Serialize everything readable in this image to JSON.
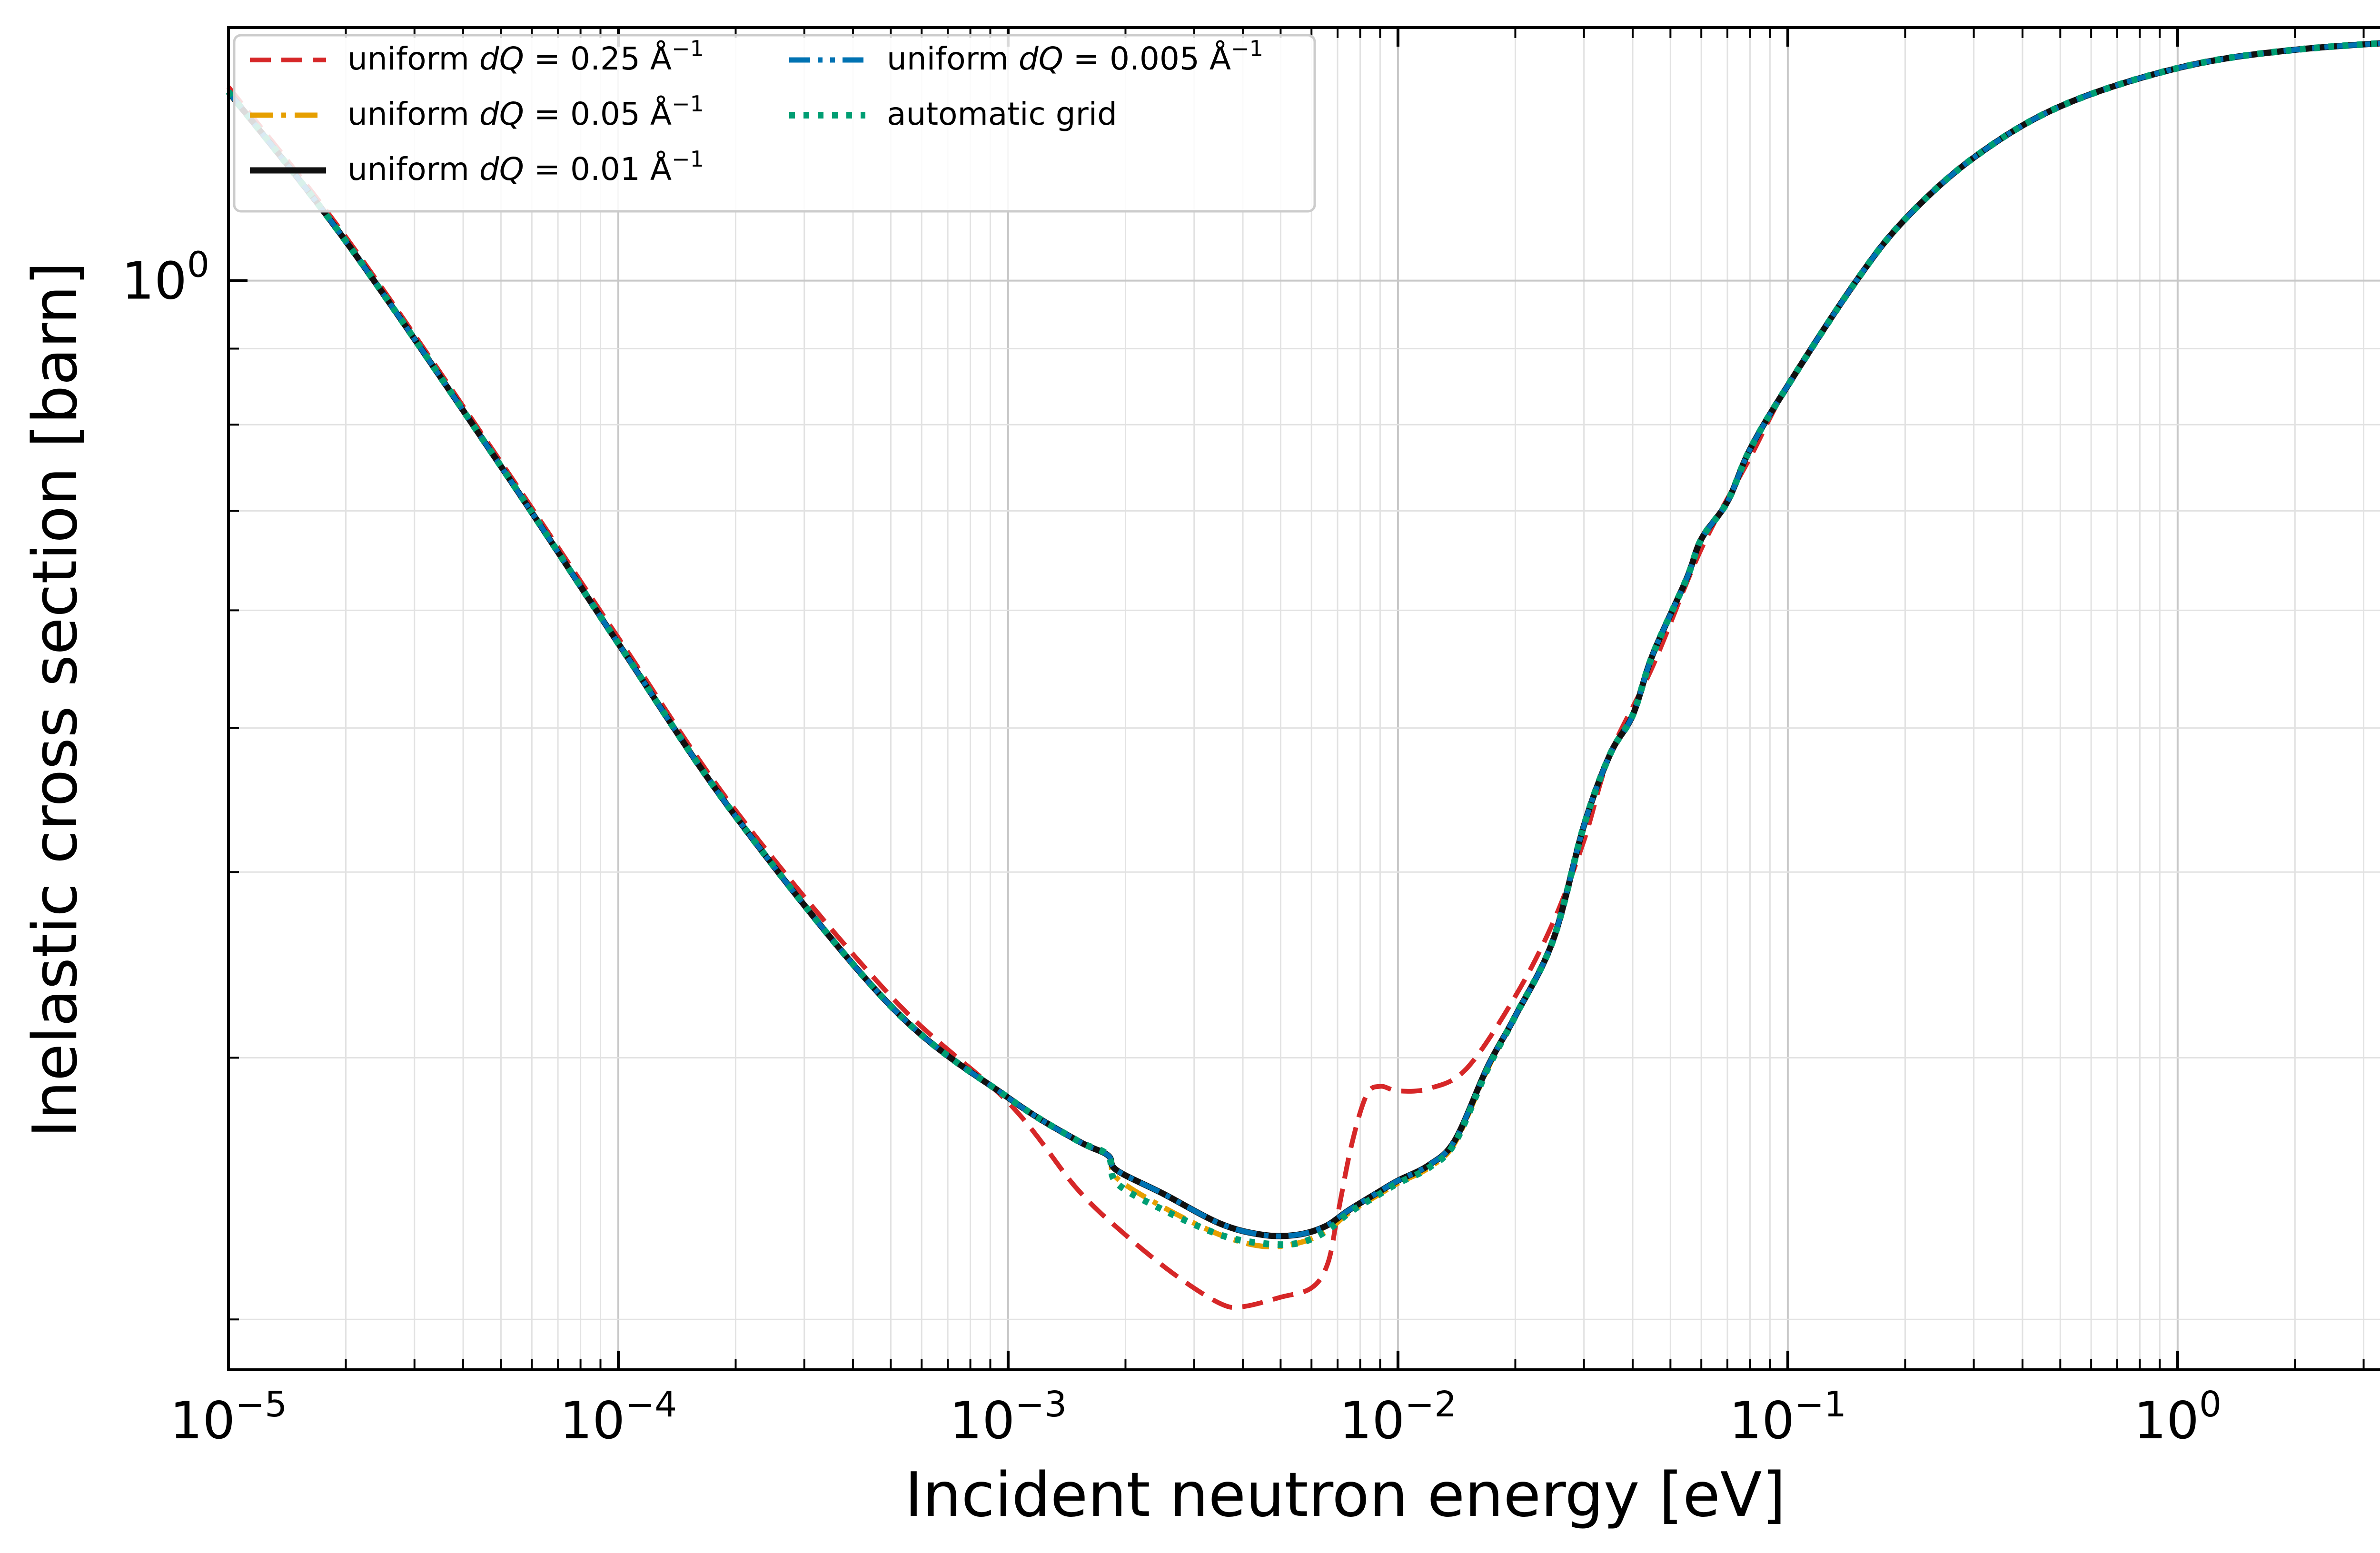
{
  "chart_data": {
    "type": "line",
    "xlabel": "Incident neutron energy [eV]",
    "ylabel": "Inelastic cross section [barn]",
    "x_scale": "log",
    "y_scale": "log",
    "xlim": [
      1e-05,
      5.3
    ],
    "ylim": [
      0.185,
      1.48
    ],
    "grid": true,
    "legend_position": "top-left",
    "x_ticks": [
      {
        "base": "10",
        "exp": "−5",
        "value": 1e-05
      },
      {
        "base": "10",
        "exp": "−4",
        "value": 0.0001
      },
      {
        "base": "10",
        "exp": "−3",
        "value": 0.001
      },
      {
        "base": "10",
        "exp": "−2",
        "value": 0.01
      },
      {
        "base": "10",
        "exp": "−1",
        "value": 0.1
      },
      {
        "base": "10",
        "exp": "0",
        "value": 1
      }
    ],
    "y_ticks": [
      {
        "base": "10",
        "exp": "0",
        "value": 1
      }
    ],
    "series": [
      {
        "name": "uniform dQ = 0.25 Å−1",
        "legend": {
          "pre": "uniform ",
          "var": "dQ",
          "eq": " = 0.25 Å",
          "sup": "−1"
        },
        "color": "#d62728",
        "style": "dashed",
        "width": 10,
        "points": [
          [
            1e-05,
            1.35
          ],
          [
            2e-05,
            1.07
          ],
          [
            5e-05,
            0.755
          ],
          [
            0.0001,
            0.575
          ],
          [
            0.0002,
            0.44
          ],
          [
            0.0005,
            0.33
          ],
          [
            0.001,
            0.28
          ],
          [
            0.0015,
            0.245
          ],
          [
            0.002,
            0.228
          ],
          [
            0.0027,
            0.214
          ],
          [
            0.0035,
            0.205
          ],
          [
            0.004,
            0.204
          ],
          [
            0.005,
            0.207
          ],
          [
            0.006,
            0.21
          ],
          [
            0.0066,
            0.218
          ],
          [
            0.007,
            0.235
          ],
          [
            0.0076,
            0.262
          ],
          [
            0.0083,
            0.283
          ],
          [
            0.009,
            0.287
          ],
          [
            0.01,
            0.285
          ],
          [
            0.012,
            0.286
          ],
          [
            0.015,
            0.295
          ],
          [
            0.02,
            0.33
          ],
          [
            0.025,
            0.37
          ],
          [
            0.03,
            0.42
          ],
          [
            0.035,
            0.48
          ],
          [
            0.045,
            0.55
          ],
          [
            0.06,
            0.66
          ],
          [
            0.08,
            0.76
          ],
          [
            0.1,
            0.85
          ],
          [
            0.15,
            1.0
          ],
          [
            0.2,
            1.1
          ],
          [
            0.3,
            1.21
          ],
          [
            0.5,
            1.31
          ],
          [
            1,
            1.39
          ],
          [
            2,
            1.43
          ],
          [
            5.3,
            1.455
          ]
        ]
      },
      {
        "name": "uniform dQ = 0.05 Å−1",
        "legend": {
          "pre": "uniform ",
          "var": "dQ",
          "eq": " = 0.05 Å",
          "sup": "−1"
        },
        "color": "#e69f00",
        "style": "dashdot",
        "width": 11,
        "points": [
          [
            1e-05,
            1.34
          ],
          [
            2e-05,
            1.063
          ],
          [
            5e-05,
            0.75
          ],
          [
            0.0001,
            0.57
          ],
          [
            0.0002,
            0.436
          ],
          [
            0.0005,
            0.325
          ],
          [
            0.001,
            0.282
          ],
          [
            0.0015,
            0.264
          ],
          [
            0.0018,
            0.258
          ],
          [
            0.0019,
            0.249
          ],
          [
            0.0025,
            0.238
          ],
          [
            0.0035,
            0.228
          ],
          [
            0.0045,
            0.224
          ],
          [
            0.0055,
            0.225
          ],
          [
            0.0065,
            0.229
          ],
          [
            0.0075,
            0.236
          ],
          [
            0.009,
            0.243
          ],
          [
            0.01,
            0.247
          ],
          [
            0.012,
            0.253
          ],
          [
            0.014,
            0.263
          ],
          [
            0.017,
            0.295
          ],
          [
            0.02,
            0.32
          ],
          [
            0.025,
            0.36
          ],
          [
            0.03,
            0.43
          ],
          [
            0.035,
            0.48
          ],
          [
            0.04,
            0.51
          ],
          [
            0.045,
            0.56
          ],
          [
            0.055,
            0.63
          ],
          [
            0.06,
            0.67
          ],
          [
            0.07,
            0.71
          ],
          [
            0.08,
            0.77
          ],
          [
            0.1,
            0.85
          ],
          [
            0.15,
            1.0
          ],
          [
            0.2,
            1.1
          ],
          [
            0.3,
            1.21
          ],
          [
            0.5,
            1.31
          ],
          [
            1,
            1.39
          ],
          [
            2,
            1.43
          ],
          [
            5.3,
            1.455
          ]
        ]
      },
      {
        "name": "uniform dQ = 0.01 Å−1",
        "legend": {
          "pre": "uniform ",
          "var": "dQ",
          "eq": " = 0.01 Å",
          "sup": "−1"
        },
        "color": "#111111",
        "style": "solid",
        "width": 13,
        "points": [
          [
            1e-05,
            1.34
          ],
          [
            2e-05,
            1.063
          ],
          [
            5e-05,
            0.75
          ],
          [
            0.0001,
            0.57
          ],
          [
            0.0002,
            0.436
          ],
          [
            0.0005,
            0.325
          ],
          [
            0.001,
            0.282
          ],
          [
            0.0015,
            0.264
          ],
          [
            0.0018,
            0.258
          ],
          [
            0.0019,
            0.252
          ],
          [
            0.0025,
            0.243
          ],
          [
            0.0035,
            0.232
          ],
          [
            0.0045,
            0.228
          ],
          [
            0.0055,
            0.228
          ],
          [
            0.0065,
            0.231
          ],
          [
            0.0075,
            0.237
          ],
          [
            0.009,
            0.244
          ],
          [
            0.01,
            0.248
          ],
          [
            0.012,
            0.254
          ],
          [
            0.014,
            0.264
          ],
          [
            0.017,
            0.296
          ],
          [
            0.02,
            0.32
          ],
          [
            0.025,
            0.36
          ],
          [
            0.03,
            0.43
          ],
          [
            0.035,
            0.48
          ],
          [
            0.04,
            0.51
          ],
          [
            0.045,
            0.56
          ],
          [
            0.055,
            0.63
          ],
          [
            0.06,
            0.67
          ],
          [
            0.07,
            0.71
          ],
          [
            0.08,
            0.77
          ],
          [
            0.1,
            0.85
          ],
          [
            0.15,
            1.0
          ],
          [
            0.2,
            1.1
          ],
          [
            0.3,
            1.21
          ],
          [
            0.5,
            1.31
          ],
          [
            1,
            1.39
          ],
          [
            2,
            1.43
          ],
          [
            5.3,
            1.455
          ]
        ]
      },
      {
        "name": "uniform dQ = 0.005 Å−1",
        "legend": {
          "pre": "uniform ",
          "var": "dQ",
          "eq": " = 0.005 Å",
          "sup": "−1"
        },
        "color": "#0072b2",
        "style": "dashdotdot",
        "width": 11,
        "points": [
          [
            1e-05,
            1.34
          ],
          [
            2e-05,
            1.063
          ],
          [
            5e-05,
            0.75
          ],
          [
            0.0001,
            0.57
          ],
          [
            0.0002,
            0.436
          ],
          [
            0.0005,
            0.325
          ],
          [
            0.001,
            0.282
          ],
          [
            0.0015,
            0.264
          ],
          [
            0.0018,
            0.258
          ],
          [
            0.0019,
            0.252
          ],
          [
            0.0025,
            0.243
          ],
          [
            0.0035,
            0.232
          ],
          [
            0.0045,
            0.228
          ],
          [
            0.0055,
            0.228
          ],
          [
            0.0065,
            0.231
          ],
          [
            0.0075,
            0.237
          ],
          [
            0.009,
            0.244
          ],
          [
            0.01,
            0.248
          ],
          [
            0.012,
            0.254
          ],
          [
            0.014,
            0.264
          ],
          [
            0.017,
            0.296
          ],
          [
            0.02,
            0.32
          ],
          [
            0.025,
            0.36
          ],
          [
            0.03,
            0.43
          ],
          [
            0.035,
            0.48
          ],
          [
            0.04,
            0.51
          ],
          [
            0.045,
            0.56
          ],
          [
            0.055,
            0.63
          ],
          [
            0.06,
            0.67
          ],
          [
            0.07,
            0.71
          ],
          [
            0.08,
            0.77
          ],
          [
            0.1,
            0.85
          ],
          [
            0.15,
            1.0
          ],
          [
            0.2,
            1.1
          ],
          [
            0.3,
            1.21
          ],
          [
            0.5,
            1.31
          ],
          [
            1,
            1.39
          ],
          [
            2,
            1.43
          ],
          [
            5.3,
            1.455
          ]
        ]
      },
      {
        "name": "automatic grid",
        "legend": {
          "pre": "automatic grid",
          "var": "",
          "eq": "",
          "sup": ""
        },
        "color": "#009e73",
        "style": "dotted",
        "width": 14,
        "points": [
          [
            1e-05,
            1.34
          ],
          [
            2e-05,
            1.063
          ],
          [
            5e-05,
            0.75
          ],
          [
            0.0001,
            0.57
          ],
          [
            0.0002,
            0.436
          ],
          [
            0.0005,
            0.325
          ],
          [
            0.001,
            0.282
          ],
          [
            0.0015,
            0.264
          ],
          [
            0.0018,
            0.258
          ],
          [
            0.0019,
            0.247
          ],
          [
            0.0025,
            0.237
          ],
          [
            0.0035,
            0.228
          ],
          [
            0.0045,
            0.225
          ],
          [
            0.0055,
            0.225
          ],
          [
            0.0065,
            0.229
          ],
          [
            0.0075,
            0.236
          ],
          [
            0.009,
            0.243
          ],
          [
            0.01,
            0.247
          ],
          [
            0.012,
            0.253
          ],
          [
            0.014,
            0.263
          ],
          [
            0.017,
            0.295
          ],
          [
            0.02,
            0.32
          ],
          [
            0.025,
            0.36
          ],
          [
            0.03,
            0.43
          ],
          [
            0.035,
            0.48
          ],
          [
            0.04,
            0.51
          ],
          [
            0.045,
            0.56
          ],
          [
            0.055,
            0.63
          ],
          [
            0.06,
            0.67
          ],
          [
            0.07,
            0.71
          ],
          [
            0.08,
            0.77
          ],
          [
            0.1,
            0.85
          ],
          [
            0.15,
            1.0
          ],
          [
            0.2,
            1.1
          ],
          [
            0.3,
            1.21
          ],
          [
            0.5,
            1.31
          ],
          [
            1,
            1.39
          ],
          [
            2,
            1.43
          ],
          [
            5.3,
            1.455
          ]
        ]
      }
    ]
  }
}
